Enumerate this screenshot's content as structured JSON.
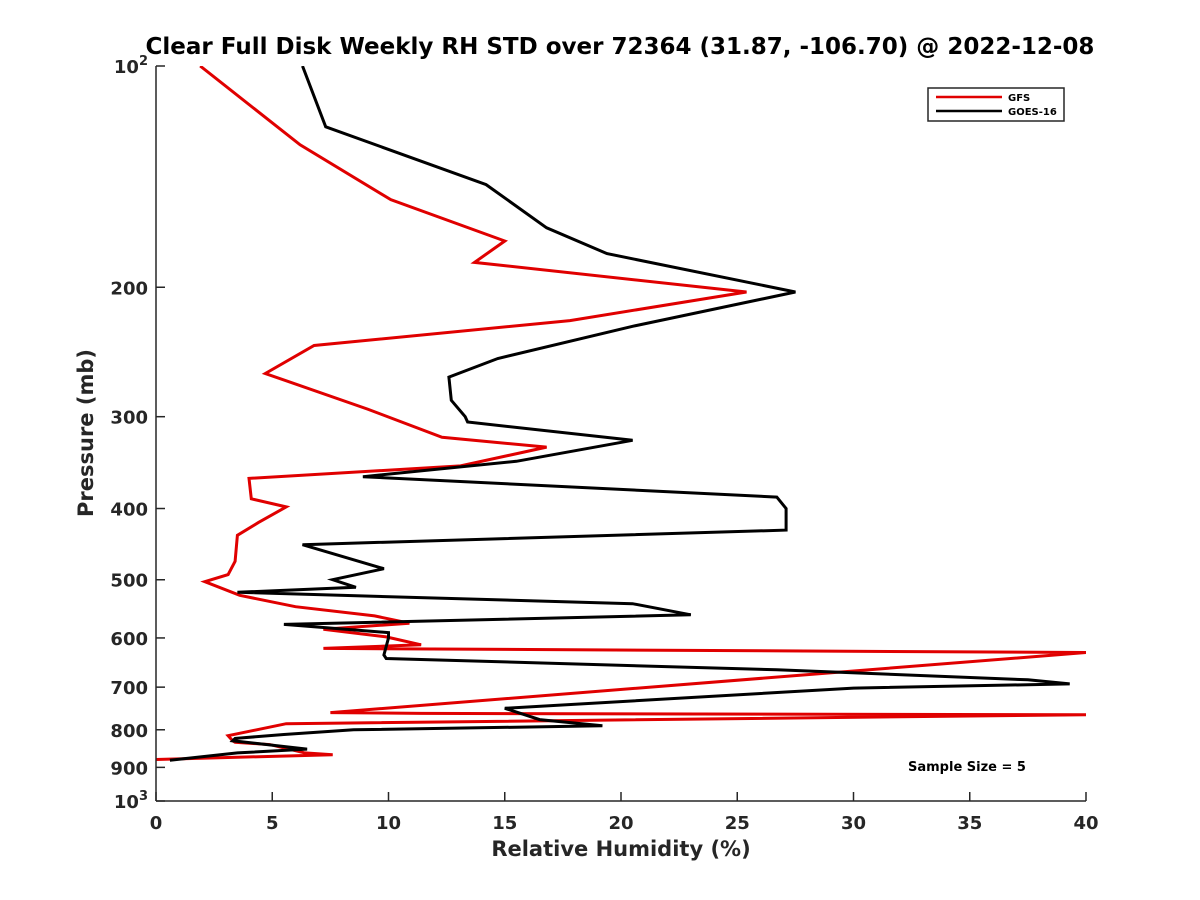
{
  "chart_data": {
    "type": "line",
    "title": "Clear Full Disk Weekly RH STD over 72364 (31.87, -106.70) @ 2022-12-08",
    "xlabel": "Relative Humidity (%)",
    "ylabel": "Pressure (mb)",
    "xlim": [
      0,
      40
    ],
    "ylim": [
      100,
      1000
    ],
    "y_scale": "log",
    "y_reversed": true,
    "grid": false,
    "legend_position": "top-right",
    "x_ticks": [
      "0",
      "5",
      "10",
      "15",
      "20",
      "25",
      "30",
      "35",
      "40"
    ],
    "y_ticks": [
      {
        "value": 100,
        "label": "10",
        "sup": "2"
      },
      {
        "value": 200,
        "label": "200",
        "sup": ""
      },
      {
        "value": 300,
        "label": "300",
        "sup": ""
      },
      {
        "value": 400,
        "label": "400",
        "sup": ""
      },
      {
        "value": 500,
        "label": "500",
        "sup": ""
      },
      {
        "value": 600,
        "label": "600",
        "sup": ""
      },
      {
        "value": 700,
        "label": "700",
        "sup": ""
      },
      {
        "value": 800,
        "label": "800",
        "sup": ""
      },
      {
        "value": 900,
        "label": "900",
        "sup": ""
      },
      {
        "value": 1000,
        "label": "10",
        "sup": "3"
      }
    ],
    "annotation": "Sample Size = 5",
    "series": [
      {
        "name": "GFS",
        "color": "#e00000",
        "x": [
          1.9,
          6.2,
          10.1,
          15.0,
          13.7,
          25.4,
          17.8,
          6.8,
          4.7,
          9.1,
          12.3,
          16.8,
          13.1,
          4.0,
          4.1,
          5.6,
          4.4,
          3.5,
          3.4,
          3.1,
          2.1,
          3.6,
          6.0,
          9.4,
          10.9,
          7.2,
          9.9,
          11.4,
          7.2,
          40.0,
          7.5,
          11.4,
          40.0,
          5.6,
          3.1,
          3.3,
          3.4,
          4.9,
          6.4,
          7.6,
          0.0
        ],
        "y": [
          100,
          128,
          152,
          173,
          185,
          203,
          222,
          240,
          262,
          293,
          320,
          330,
          350,
          364,
          388,
          398,
          418,
          435,
          472,
          492,
          503,
          525,
          544,
          560,
          573,
          584,
          598,
          613,
          620,
          628,
          758,
          760,
          763,
          785,
          815,
          828,
          832,
          838,
          860,
          865,
          878
        ]
      },
      {
        "name": "GOES-16",
        "color": "#000000",
        "x": [
          6.3,
          7.3,
          14.2,
          16.8,
          19.4,
          27.5,
          20.5,
          14.7,
          12.6,
          12.7,
          13.3,
          13.4,
          20.5,
          15.5,
          8.9,
          26.7,
          27.1,
          27.1,
          6.3,
          9.8,
          7.6,
          8.6,
          3.5,
          20.5,
          23.0,
          5.5,
          10.0,
          10.0,
          9.8,
          9.9,
          26.7,
          37.5,
          39.3,
          30.0,
          15.0,
          16.5,
          19.2,
          8.5,
          5.5,
          3.4,
          3.3,
          6.5,
          3.5,
          0.6
        ],
        "y": [
          100,
          121,
          145,
          166,
          180,
          203,
          226,
          250,
          265,
          285,
          300,
          305,
          323,
          345,
          362,
          386,
          400,
          428,
          448,
          483,
          500,
          512,
          520,
          539,
          558,
          575,
          590,
          600,
          633,
          640,
          663,
          684,
          693,
          702,
          748,
          775,
          790,
          800,
          812,
          822,
          828,
          850,
          860,
          880
        ]
      }
    ]
  }
}
